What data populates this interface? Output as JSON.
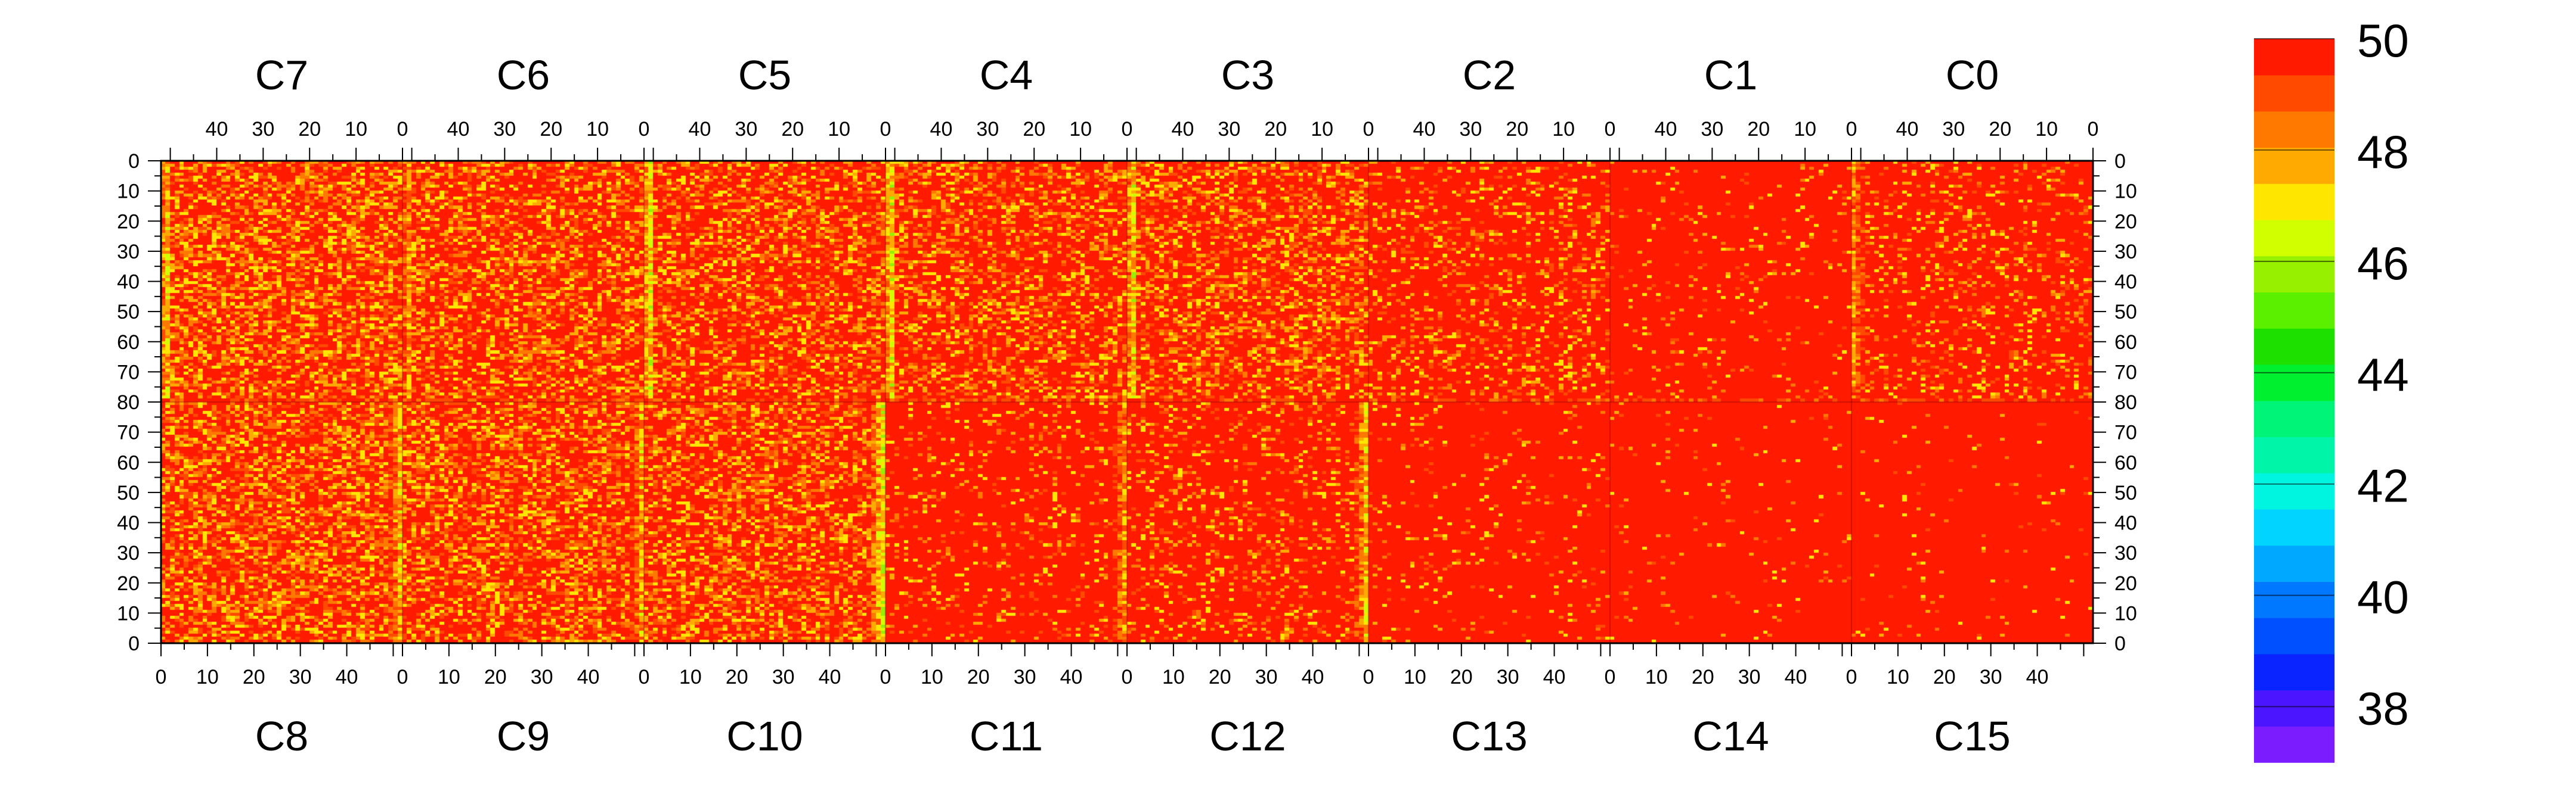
{
  "chart_data": {
    "type": "heatmap",
    "title": "",
    "top_chips": [
      "C7",
      "C6",
      "C5",
      "C4",
      "C3",
      "C2",
      "C1",
      "C0"
    ],
    "bottom_chips": [
      "C8",
      "C9",
      "C10",
      "C11",
      "C12",
      "C13",
      "C14",
      "C15"
    ],
    "columns_per_chip": 52,
    "rows_top_half": 80,
    "rows_bottom_half": 80,
    "top_axis_ticks": [
      "40",
      "30",
      "20",
      "10",
      "0"
    ],
    "bottom_axis_ticks": [
      "0",
      "10",
      "20",
      "30",
      "40"
    ],
    "top_axis_reversed": true,
    "left_y_ticks": [
      "0",
      "10",
      "20",
      "30",
      "40",
      "50",
      "60",
      "70",
      "80",
      "70",
      "60",
      "50",
      "40",
      "30",
      "20",
      "10",
      "0"
    ],
    "right_y_ticks": [
      "0",
      "10",
      "20",
      "30",
      "40",
      "50",
      "60",
      "70",
      "80",
      "70",
      "60",
      "50",
      "40",
      "30",
      "20",
      "10",
      "0"
    ],
    "zlim": [
      37,
      50
    ],
    "colorbar_ticks": [
      "50",
      "48",
      "46",
      "44",
      "42",
      "40",
      "38"
    ],
    "colorbar_tick_values": [
      50,
      48,
      46,
      44,
      42,
      40,
      38
    ],
    "colorbar_colors": [
      "#7b1cff",
      "#4b16ff",
      "#0a24ff",
      "#0050ff",
      "#0078ff",
      "#00a8ff",
      "#00d4ff",
      "#00f5e0",
      "#00f5a8",
      "#00f578",
      "#00f030",
      "#1ee000",
      "#5af000",
      "#96f000",
      "#d2ff00",
      "#ffe600",
      "#ffaa00",
      "#ff7800",
      "#ff4a00",
      "#ff1a00"
    ],
    "colorbar_levels": 20,
    "background_value": 50,
    "chip_mean_values": [
      48.4,
      48.6,
      48.7,
      48.8,
      48.7,
      49.3,
      49.8,
      49.4,
      48.4,
      48.5,
      48.6,
      49.6,
      49.4,
      49.8,
      49.9,
      49.9
    ],
    "hot_columns": [
      {
        "chip": "C7",
        "column": 1,
        "value": 46.2
      },
      {
        "chip": "C6",
        "column": 1,
        "value": 46.8
      },
      {
        "chip": "C5",
        "column": 1,
        "value": 45.8
      },
      {
        "chip": "C4",
        "column": 1,
        "value": 45.8
      },
      {
        "chip": "C3",
        "column": 1,
        "value": 46.0
      },
      {
        "chip": "C0",
        "column": 0,
        "value": 46.8
      },
      {
        "chip": "C8",
        "column": 51,
        "value": 46.3
      },
      {
        "chip": "C9",
        "column": 51,
        "value": 46.6
      },
      {
        "chip": "C10",
        "column": 51,
        "value": 45.6
      },
      {
        "chip": "C11",
        "column": 51,
        "value": 46.8
      },
      {
        "chip": "C12",
        "column": 51,
        "value": 46.2
      }
    ],
    "row_80_stripe_value": 48.3,
    "grid": false
  }
}
